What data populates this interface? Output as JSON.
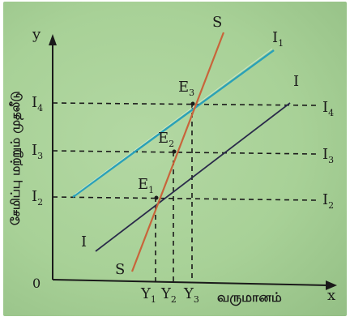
{
  "axes": {
    "y_label": "y",
    "x_label": "x",
    "origin": "0",
    "y_title": "சேமிப்பு மற்றும் முதலீடு",
    "x_title": "வருமானம்"
  },
  "curves": {
    "S_top": "S",
    "S_bottom": "S",
    "I1": "I",
    "I1_sub": "1",
    "I_right": "I",
    "I_left": "I"
  },
  "points": {
    "E1": {
      "main": "E",
      "sub": "1"
    },
    "E2": {
      "main": "E",
      "sub": "2"
    },
    "E3": {
      "main": "E",
      "sub": "3"
    }
  },
  "y_ticks": [
    {
      "main": "I",
      "sub": "4"
    },
    {
      "main": "I",
      "sub": "3"
    },
    {
      "main": "I",
      "sub": "2"
    }
  ],
  "right_labels": [
    {
      "main": "I",
      "sub": "4"
    },
    {
      "main": "I",
      "sub": "3"
    },
    {
      "main": "I",
      "sub": "2"
    }
  ],
  "x_ticks": [
    {
      "main": "Y",
      "sub": "1"
    },
    {
      "main": "Y",
      "sub": "2"
    },
    {
      "main": "Y",
      "sub": "3"
    }
  ],
  "colors": {
    "background": "#a8d197",
    "axis": "#1a1a1a",
    "saving_line": "#c8643a",
    "investment_I1": "#2aa1b8",
    "investment_I": "#2a2a4a",
    "dashed": "#1a1a1a"
  }
}
